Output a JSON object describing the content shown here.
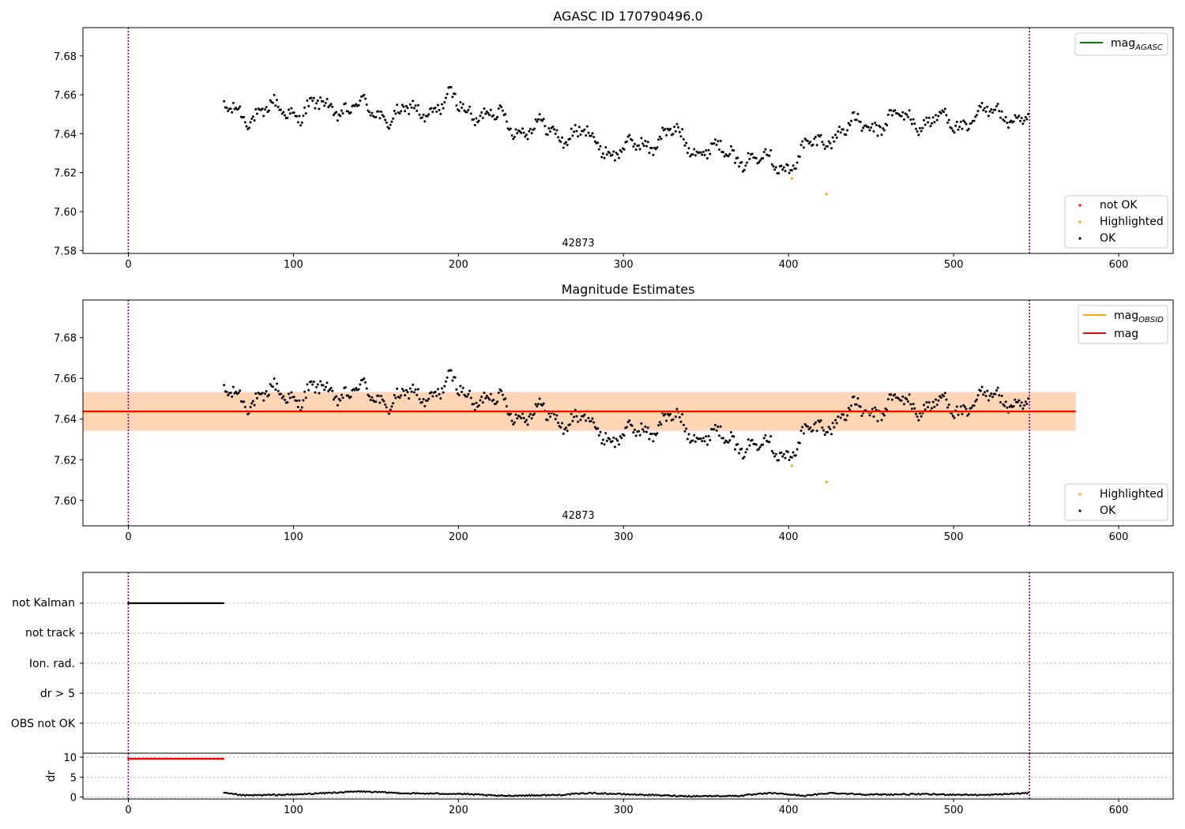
{
  "colors": {
    "ok": "#000000",
    "not_ok": "#ff0000",
    "highlighted": "#ffa500",
    "mag_agasc": "#008000",
    "mag_obsid": "#ffa500",
    "mag": "#ff0000",
    "obs_bound": "#800080",
    "band_obsid": "#ffa500",
    "band_mag": "#ff8080"
  },
  "panels": {
    "top": {
      "title": "AGASC ID 170790496.0",
      "obsid_label": "42873",
      "xticks": [
        "0",
        "100",
        "200",
        "300",
        "400",
        "500",
        "600"
      ],
      "yticks": [
        "7.58",
        "7.60",
        "7.62",
        "7.64",
        "7.66",
        "7.68"
      ],
      "legend_line": {
        "base": "mag",
        "sub": "AGASC"
      },
      "legend_points": [
        "not OK",
        "Highlighted",
        "OK"
      ]
    },
    "middle": {
      "title": "Magnitude Estimates",
      "obsid_label": "42873",
      "xticks": [
        "0",
        "100",
        "200",
        "300",
        "400",
        "500",
        "600"
      ],
      "yticks": [
        "7.60",
        "7.62",
        "7.64",
        "7.66",
        "7.68"
      ],
      "legend_line1": {
        "base": "mag",
        "sub": "OBSID"
      },
      "legend_line2": "mag",
      "legend_points": [
        "Highlighted",
        "OK"
      ]
    },
    "flags": {
      "categories": [
        "not Kalman",
        "not track",
        "Ion. rad.",
        "dr > 5",
        "OBS not OK"
      ]
    },
    "dr": {
      "ylabel": "dr",
      "yticks": [
        "0",
        "5",
        "10"
      ],
      "xticks": [
        "0",
        "100",
        "200",
        "300",
        "400",
        "500",
        "600"
      ]
    }
  },
  "chart_data": [
    {
      "type": "scatter",
      "title": "AGASC ID 170790496.0",
      "xlim": [
        -27.5,
        633
      ],
      "ylim": [
        7.5785,
        7.6945
      ],
      "grid": false,
      "legend": [
        {
          "position": "top-right",
          "entries": [
            "mag_AGASC"
          ]
        },
        {
          "position": "bottom-right",
          "entries": [
            "not OK",
            "Highlighted",
            "OK"
          ]
        }
      ],
      "observation_bounds": [
        0,
        546
      ],
      "annotation": "42873",
      "series": [
        {
          "name": "OK",
          "x_range": [
            58,
            546
          ],
          "approx_trend": [
            [
              58,
              7.65
            ],
            [
              100,
              7.652
            ],
            [
              130,
              7.654
            ],
            [
              165,
              7.649
            ],
            [
              195,
              7.656
            ],
            [
              240,
              7.643
            ],
            [
              270,
              7.64
            ],
            [
              300,
              7.63
            ],
            [
              325,
              7.64
            ],
            [
              350,
              7.632
            ],
            [
              375,
              7.628
            ],
            [
              400,
              7.624
            ],
            [
              425,
              7.64
            ],
            [
              450,
              7.645
            ],
            [
              475,
              7.648
            ],
            [
              500,
              7.645
            ],
            [
              530,
              7.652
            ],
            [
              546,
              7.644
            ]
          ]
        },
        {
          "name": "Highlighted",
          "points": [
            [
              402,
              7.617
            ],
            [
              423,
              7.609
            ]
          ]
        },
        {
          "name": "not OK",
          "points": []
        }
      ]
    },
    {
      "type": "scatter",
      "title": "Magnitude Estimates",
      "xlim": [
        -27.5,
        633
      ],
      "ylim": [
        7.5875,
        7.6985
      ],
      "grid": false,
      "legend": [
        {
          "position": "top-right",
          "entries": [
            "mag_OBSID",
            "mag"
          ]
        },
        {
          "position": "bottom-right",
          "entries": [
            "Highlighted",
            "OK"
          ]
        }
      ],
      "mag_obsid": 7.6435,
      "mag": 7.6438,
      "mag_obsid_band": [
        7.6345,
        7.653
      ],
      "mag_band": [
        7.634,
        7.6535
      ],
      "band_x_range": [
        -27.5,
        574
      ],
      "annotation": "42873"
    },
    {
      "type": "scatter",
      "categories": [
        "not Kalman",
        "not track",
        "Ion. rad.",
        "dr > 5",
        "OBS not OK"
      ],
      "xlim": [
        -27.5,
        633
      ],
      "flag_ranges": {
        "not Kalman": [
          0,
          58
        ]
      },
      "grid": true
    },
    {
      "type": "scatter",
      "ylabel": "dr",
      "xlim": [
        -27.5,
        633
      ],
      "ylim": [
        -0.5,
        11
      ],
      "dr_gt5_segment": {
        "x_range": [
          0,
          58
        ],
        "value": 9.6
      },
      "dr_trend": [
        [
          58,
          1.0
        ],
        [
          70,
          0.4
        ],
        [
          100,
          0.6
        ],
        [
          140,
          1.4
        ],
        [
          170,
          0.9
        ],
        [
          200,
          0.8
        ],
        [
          225,
          0.3
        ],
        [
          260,
          0.5
        ],
        [
          280,
          1.0
        ],
        [
          300,
          0.7
        ],
        [
          340,
          0.2
        ],
        [
          370,
          0.3
        ],
        [
          390,
          1.0
        ],
        [
          410,
          0.3
        ],
        [
          425,
          1.0
        ],
        [
          450,
          0.6
        ],
        [
          480,
          0.7
        ],
        [
          520,
          0.5
        ],
        [
          546,
          1.0
        ]
      ]
    }
  ]
}
